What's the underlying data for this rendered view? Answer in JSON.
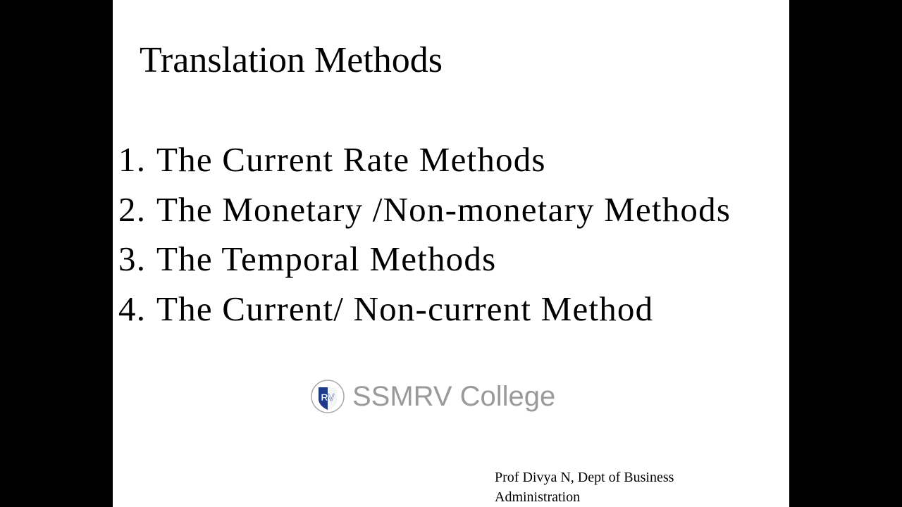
{
  "slide": {
    "title": "Translation Methods",
    "items": [
      {
        "num": "1.",
        "text": "The Current Rate Methods"
      },
      {
        "num": "2.",
        "text": "The Monetary /Non-monetary Methods"
      },
      {
        "num": "3.",
        "text": "The Temporal Methods"
      },
      {
        "num": "4.",
        "text": "The Current/ Non-current Method"
      }
    ],
    "watermark": "SSMRV College",
    "logo_text": "RV",
    "footer_line1": "Prof Divya N, Dept of Business",
    "footer_line2": "Administration"
  }
}
